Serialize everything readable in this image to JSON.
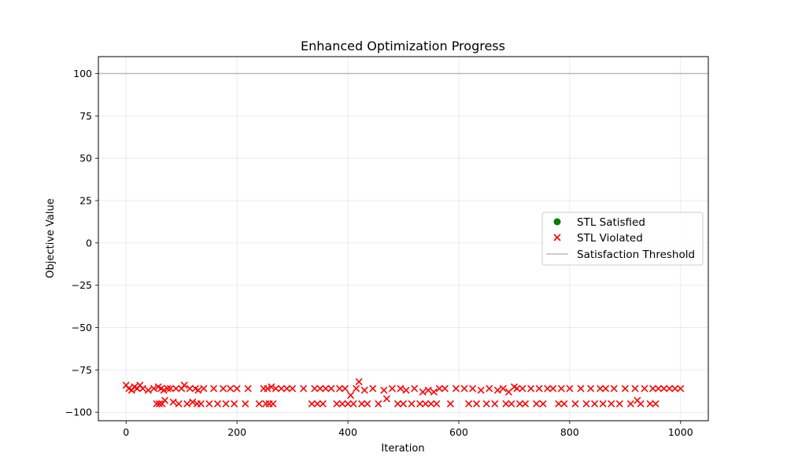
{
  "chart_data": {
    "type": "scatter",
    "title": "Enhanced Optimization Progress",
    "xlabel": "Iteration",
    "ylabel": "Objective Value",
    "xlim": [
      -50,
      1050
    ],
    "ylim": [
      -105,
      110
    ],
    "xticks": [
      0,
      200,
      400,
      600,
      800,
      1000
    ],
    "xtick_labels": [
      "0",
      "200",
      "400",
      "600",
      "800",
      "1000"
    ],
    "yticks": [
      -100,
      -75,
      -50,
      -25,
      0,
      25,
      50,
      75,
      100
    ],
    "ytick_labels": [
      "−100",
      "−75",
      "−50",
      "−25",
      "0",
      "25",
      "50",
      "75",
      "100"
    ],
    "grid": true,
    "legend_placement": "center-right",
    "threshold": {
      "name": "Satisfaction Threshold",
      "value": 100,
      "color": "#bbbbbb"
    },
    "series": [
      {
        "name": "STL Satisfied",
        "marker": "circle",
        "color": "#008000",
        "x": [],
        "y": []
      },
      {
        "name": "STL Violated",
        "marker": "x",
        "color": "#ff0000",
        "x": [
          0,
          5,
          10,
          15,
          20,
          25,
          30,
          40,
          50,
          55,
          58,
          60,
          63,
          65,
          68,
          70,
          75,
          80,
          85,
          90,
          95,
          100,
          105,
          110,
          115,
          120,
          125,
          128,
          130,
          135,
          140,
          150,
          158,
          165,
          175,
          180,
          188,
          195,
          200,
          215,
          220,
          240,
          248,
          252,
          255,
          258,
          262,
          265,
          270,
          280,
          290,
          300,
          320,
          335,
          340,
          345,
          350,
          355,
          360,
          370,
          380,
          385,
          390,
          395,
          400,
          405,
          410,
          415,
          420,
          425,
          430,
          435,
          445,
          455,
          465,
          470,
          480,
          490,
          495,
          500,
          505,
          515,
          520,
          530,
          535,
          540,
          545,
          550,
          555,
          560,
          565,
          575,
          585,
          595,
          610,
          618,
          625,
          632,
          640,
          650,
          655,
          665,
          670,
          680,
          685,
          690,
          695,
          700,
          705,
          710,
          715,
          720,
          730,
          740,
          745,
          752,
          760,
          770,
          780,
          785,
          790,
          800,
          810,
          820,
          830,
          838,
          845,
          855,
          860,
          865,
          875,
          880,
          890,
          900,
          910,
          918,
          922,
          928,
          935,
          945,
          950,
          955,
          960,
          970,
          980,
          990,
          1000
        ],
        "y": [
          -84,
          -86,
          -87,
          -85,
          -86,
          -84,
          -86,
          -87,
          -86,
          -95,
          -85,
          -95,
          -86,
          -95,
          -87,
          -93,
          -86,
          -86,
          -94,
          -86,
          -95,
          -86,
          -84,
          -95,
          -86,
          -94,
          -86,
          -95,
          -87,
          -95,
          -86,
          -95,
          -86,
          -95,
          -86,
          -95,
          -86,
          -95,
          -86,
          -95,
          -86,
          -95,
          -86,
          -95,
          -86,
          -95,
          -85,
          -95,
          -86,
          -86,
          -86,
          -86,
          -86,
          -95,
          -86,
          -95,
          -86,
          -95,
          -86,
          -86,
          -95,
          -86,
          -95,
          -86,
          -95,
          -90,
          -95,
          -86,
          -82,
          -95,
          -87,
          -95,
          -86,
          -95,
          -87,
          -92,
          -86,
          -95,
          -86,
          -95,
          -87,
          -95,
          -86,
          -95,
          -88,
          -95,
          -87,
          -95,
          -88,
          -95,
          -86,
          -86,
          -95,
          -86,
          -86,
          -95,
          -86,
          -95,
          -87,
          -95,
          -86,
          -95,
          -87,
          -86,
          -95,
          -88,
          -95,
          -85,
          -86,
          -95,
          -86,
          -95,
          -86,
          -95,
          -86,
          -95,
          -86,
          -86,
          -95,
          -86,
          -95,
          -86,
          -95,
          -86,
          -95,
          -86,
          -95,
          -86,
          -95,
          -86,
          -95,
          -86,
          -95,
          -86,
          -95,
          -86,
          -93,
          -95,
          -86,
          -95,
          -86,
          -95,
          -86,
          -86,
          -86,
          -86,
          -86
        ]
      }
    ]
  }
}
